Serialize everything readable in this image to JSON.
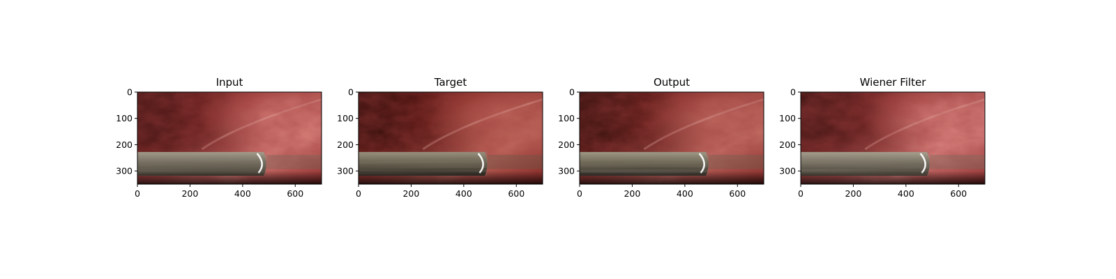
{
  "figure": {
    "panels": [
      {
        "title": "Input",
        "variant": "input"
      },
      {
        "title": "Target",
        "variant": "target"
      },
      {
        "title": "Output",
        "variant": "output"
      },
      {
        "title": "Wiener Filter",
        "variant": "wiener"
      }
    ],
    "x_ticks": [
      "0",
      "200",
      "400",
      "600"
    ],
    "y_ticks": [
      "0",
      "100",
      "200",
      "300"
    ],
    "x_tick_values": [
      0,
      200,
      400,
      600
    ],
    "y_tick_values": [
      0,
      100,
      200,
      300
    ],
    "image_width": 700,
    "image_height": 350,
    "scene": "surgical endoscopic view: reddish tissue with a grey metallic instrument shaft along the bottom"
  }
}
